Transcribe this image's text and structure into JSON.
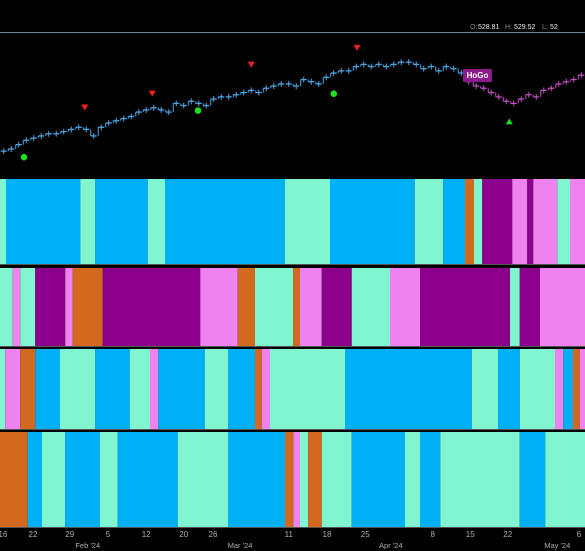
{
  "chart_data": {
    "type": "bar",
    "header": [
      {
        "label": "O:",
        "value": "528.81"
      },
      {
        "label": "H:",
        "value": "529.52"
      },
      {
        "label": "L:",
        "value": "52"
      }
    ],
    "xlim": [
      0,
      78
    ],
    "ylim": [
      470,
      535
    ],
    "xticks": [
      {
        "value": 0.4,
        "label": "16"
      },
      {
        "value": 4.4,
        "label": "22"
      },
      {
        "value": 9.3,
        "label": "29"
      },
      {
        "value": 14.4,
        "label": "5"
      },
      {
        "value": 19.5,
        "label": "12"
      },
      {
        "value": 24.5,
        "label": "20"
      },
      {
        "value": 28.4,
        "label": "26"
      },
      {
        "value": 38.5,
        "label": "11"
      },
      {
        "value": 43.6,
        "label": "18"
      },
      {
        "value": 48.7,
        "label": "25"
      },
      {
        "value": 57.7,
        "label": "8"
      },
      {
        "value": 62.7,
        "label": "15"
      },
      {
        "value": 67.7,
        "label": "22"
      },
      {
        "value": 77.2,
        "label": "6"
      }
    ],
    "xticks_months": [
      {
        "value": 11.7,
        "label": "Feb '24"
      },
      {
        "value": 32,
        "label": "Mar '24"
      },
      {
        "value": 52.1,
        "label": "Apr '24"
      },
      {
        "value": 74.3,
        "label": "May '24"
      }
    ],
    "series": [
      {
        "color": "#4aa8e8",
        "values": [
          481,
          482,
          484,
          486,
          487,
          488,
          489,
          489,
          490,
          491,
          492,
          491,
          488,
          492,
          494,
          495,
          496,
          497,
          499,
          500,
          501,
          500,
          499,
          503,
          502,
          504,
          503,
          502,
          505,
          506,
          506,
          507,
          508,
          509,
          508,
          510,
          511,
          512,
          512,
          511,
          514,
          513,
          512,
          515,
          517,
          518,
          518,
          520,
          521,
          520,
          521,
          520,
          521,
          522,
          522,
          521,
          519,
          520,
          518,
          520,
          519,
          517,
          null,
          null,
          null,
          null,
          null,
          null,
          null,
          null,
          null,
          null,
          null,
          null,
          null,
          null,
          null,
          null,
          null
        ]
      },
      {
        "color": "#c050c0",
        "values": [
          null,
          null,
          null,
          null,
          null,
          null,
          null,
          null,
          null,
          null,
          null,
          null,
          null,
          null,
          null,
          null,
          null,
          null,
          null,
          null,
          null,
          null,
          null,
          null,
          null,
          null,
          null,
          null,
          null,
          null,
          null,
          null,
          null,
          null,
          null,
          null,
          null,
          null,
          null,
          null,
          null,
          null,
          null,
          null,
          null,
          null,
          null,
          null,
          null,
          null,
          null,
          null,
          null,
          null,
          null,
          null,
          null,
          null,
          null,
          null,
          null,
          null,
          513,
          511,
          510,
          508,
          506,
          504,
          503,
          505,
          507,
          506,
          509,
          510,
          512,
          513,
          514,
          516,
          517
        ]
      }
    ],
    "markers": [
      {
        "shape": "circle",
        "color": "#22dd22",
        "x": 3.2,
        "value": 478.2
      },
      {
        "shape": "circle",
        "color": "#22dd22",
        "x": 26.4,
        "value": 499.7
      },
      {
        "shape": "circle",
        "color": "#22dd22",
        "x": 44.5,
        "value": 507.5
      },
      {
        "shape": "triangle-down",
        "color": "#ee2222",
        "x": 11.3,
        "value": 501.1
      },
      {
        "shape": "triangle-down",
        "color": "#ee2222",
        "x": 20.3,
        "value": 507.5
      },
      {
        "shape": "triangle-down",
        "color": "#ee2222",
        "x": 33.5,
        "value": 520.8
      },
      {
        "shape": "triangle-down",
        "color": "#ee2222",
        "x": 47.6,
        "value": 528.6
      },
      {
        "shape": "triangle-up",
        "color": "#22dd22",
        "x": 67.9,
        "value": 494.7
      }
    ],
    "annotations": [
      {
        "text": "HoGo",
        "color": "#8b1a8b"
      }
    ],
    "strips": [
      {
        "starts": [
          0,
          0.8,
          10.7,
          12.7,
          19.7,
          22,
          38,
          44,
          55.3,
          59.1,
          62,
          63.2,
          64.3,
          68.3,
          70.3,
          71.1,
          74.3,
          76
        ],
        "colors": [
          "#80f5d0",
          "#00b0f6",
          "#80f5d0",
          "#00b0f6",
          "#80f5d0",
          "#00b0f6",
          "#80f5d0",
          "#00b0f6",
          "#80f5d0",
          "#00b0f6",
          "#d2691e",
          "#80f5d0",
          "#8b008b",
          "#ee82ee",
          "#8b008b",
          "#ee82ee",
          "#80f5d0",
          "#ee82ee"
        ]
      },
      {
        "starts": [
          0,
          1.7,
          2.7,
          4.7,
          8.7,
          9.7,
          13.7,
          26.7,
          31.7,
          34,
          39.1,
          40,
          42.9,
          46.9,
          52,
          56,
          68,
          69.3,
          72
        ],
        "colors": [
          "#80f5d0",
          "#ee82ee",
          "#80f5d0",
          "#8b008b",
          "#ee82ee",
          "#d2691e",
          "#8b008b",
          "#ee82ee",
          "#d2691e",
          "#80f5d0",
          "#d2691e",
          "#ee82ee",
          "#8b008b",
          "#80f5d0",
          "#ee82ee",
          "#8b008b",
          "#80f5d0",
          "#8b008b",
          "#ee82ee"
        ]
      },
      {
        "starts": [
          0,
          0.7,
          2.7,
          4.7,
          8,
          12.7,
          17.3,
          20,
          21.1,
          27.3,
          30.4,
          34,
          34.9,
          36,
          46,
          62.9,
          66.4,
          69.3,
          74,
          75.1,
          76.4,
          77.3
        ],
        "colors": [
          "#80f5d0",
          "#ee82ee",
          "#d2691e",
          "#00b0f6",
          "#80f5d0",
          "#00b0f6",
          "#80f5d0",
          "#ee82ee",
          "#00b0f6",
          "#80f5d0",
          "#00b0f6",
          "#d2691e",
          "#ee82ee",
          "#80f5d0",
          "#00b0f6",
          "#80f5d0",
          "#00b0f6",
          "#80f5d0",
          "#ee82ee",
          "#00b0f6",
          "#d2691e",
          "#ee82ee"
        ]
      },
      {
        "starts": [
          0,
          3.7,
          5.6,
          8.7,
          13.3,
          15.7,
          23.7,
          30.4,
          38,
          39.1,
          40,
          41.1,
          42.9,
          46.9,
          54,
          56,
          58.7,
          69.3,
          72.7
        ],
        "colors": [
          "#d2691e",
          "#00b0f6",
          "#80f5d0",
          "#00b0f6",
          "#80f5d0",
          "#00b0f6",
          "#80f5d0",
          "#00b0f6",
          "#d2691e",
          "#ee82ee",
          "#80f5d0",
          "#d2691e",
          "#80f5d0",
          "#00b0f6",
          "#80f5d0",
          "#00b0f6",
          "#80f5d0",
          "#00b0f6",
          "#80f5d0"
        ]
      }
    ]
  }
}
